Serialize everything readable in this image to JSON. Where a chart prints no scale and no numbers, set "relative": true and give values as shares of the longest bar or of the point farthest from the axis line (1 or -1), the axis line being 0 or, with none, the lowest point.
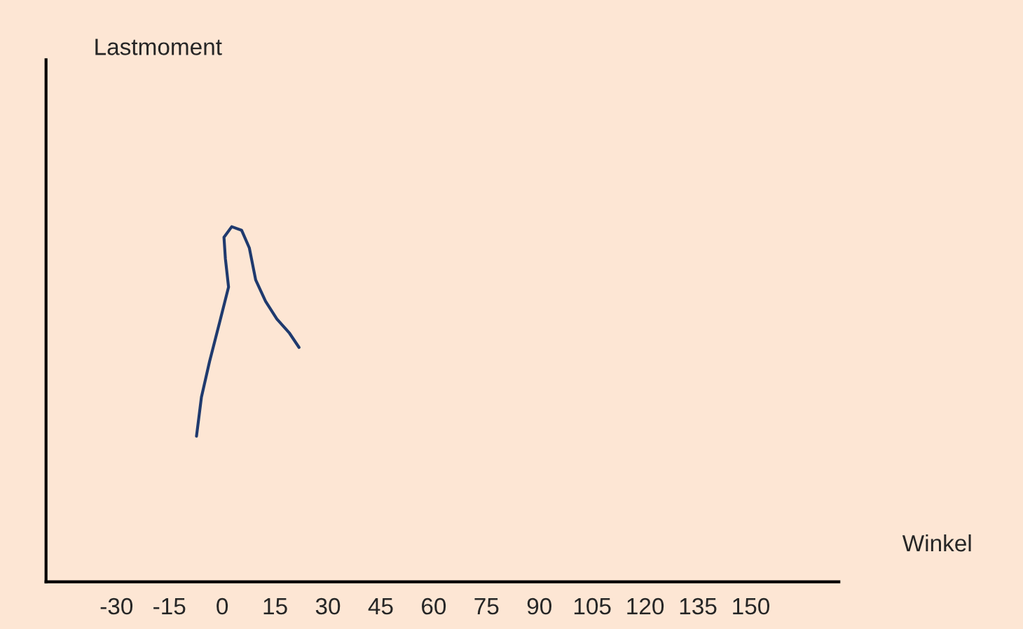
{
  "chart_data": {
    "type": "line",
    "relative": true,
    "xlabel": "Winkel",
    "annotations": [
      "Lastmoment"
    ],
    "xlim": [
      -50,
      175
    ],
    "xticks": [
      -30,
      -15,
      0,
      15,
      30,
      45,
      60,
      75,
      90,
      105,
      120,
      135,
      150
    ],
    "grid": false,
    "legend": false,
    "marker": "none",
    "line_style": "solid",
    "series": [
      {
        "color": "#1f3a6e",
        "x": [
          -7.3,
          -5.9,
          -3.6,
          -0.5,
          1.8,
          0.9,
          0.5,
          2.7,
          5.5,
          7.7,
          9.5,
          12.3,
          15.5,
          19.1,
          21.8
        ],
        "values": [
          0.41,
          0.52,
          0.62,
          0.74,
          0.83,
          0.91,
          0.97,
          1.0,
          0.99,
          0.94,
          0.85,
          0.79,
          0.74,
          0.7,
          0.66
        ]
      }
    ]
  }
}
